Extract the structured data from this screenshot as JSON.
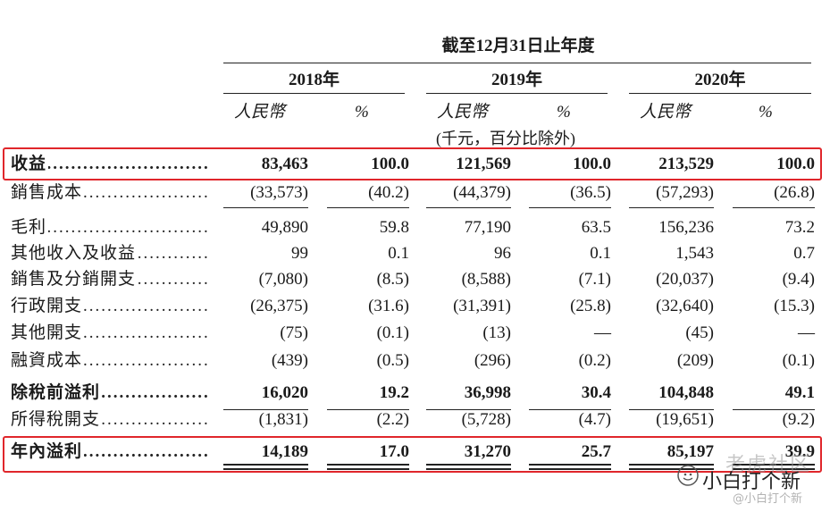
{
  "header": {
    "period": "截至12月31日止年度",
    "years": [
      "2018年",
      "2019年",
      "2020年"
    ],
    "currency": "人民幣",
    "percent": "%",
    "unit_note": "(千元，百分比除外)"
  },
  "rows": [
    {
      "label": "收益",
      "bold": true,
      "values": [
        "83,463",
        "100.0",
        "121,569",
        "100.0",
        "213,529",
        "100.0"
      ]
    },
    {
      "label": "銷售成本",
      "bold": false,
      "values": [
        "(33,573)",
        "(40.2)",
        "(44,379)",
        "(36.5)",
        "(57,293)",
        "(26.8)"
      ]
    },
    {
      "label": "毛利",
      "bold": false,
      "values": [
        "49,890",
        "59.8",
        "77,190",
        "63.5",
        "156,236",
        "73.2"
      ]
    },
    {
      "label": "其他收入及收益",
      "bold": false,
      "values": [
        "99",
        "0.1",
        "96",
        "0.1",
        "1,543",
        "0.7"
      ]
    },
    {
      "label": "銷售及分銷開支",
      "bold": false,
      "values": [
        "(7,080)",
        "(8.5)",
        "(8,588)",
        "(7.1)",
        "(20,037)",
        "(9.4)"
      ]
    },
    {
      "label": "行政開支",
      "bold": false,
      "values": [
        "(26,375)",
        "(31.6)",
        "(31,391)",
        "(25.8)",
        "(32,640)",
        "(15.3)"
      ]
    },
    {
      "label": "其他開支",
      "bold": false,
      "values": [
        "(75)",
        "(0.1)",
        "(13)",
        "—",
        "(45)",
        "—"
      ]
    },
    {
      "label": "融資成本",
      "bold": false,
      "values": [
        "(439)",
        "(0.5)",
        "(296)",
        "(0.2)",
        "(209)",
        "(0.1)"
      ]
    },
    {
      "label": "除稅前溢利",
      "bold": true,
      "values": [
        "16,020",
        "19.2",
        "36,998",
        "30.4",
        "104,848",
        "49.1"
      ]
    },
    {
      "label": "所得稅開支",
      "bold": false,
      "values": [
        "(1,831)",
        "(2.2)",
        "(5,728)",
        "(4.7)",
        "(19,651)",
        "(9.2)"
      ]
    },
    {
      "label": "年內溢利",
      "bold": true,
      "values": [
        "14,189",
        "17.0",
        "31,270",
        "25.7",
        "85,197",
        "39.9"
      ]
    }
  ],
  "watermark": {
    "big_text": "老虎社区",
    "dark_text": "小白打个新",
    "small_text": "@小白打个新"
  },
  "colors": {
    "highlight_box": "#e0262b",
    "text": "#1a1a1a",
    "watermark": "#9a9a9a"
  }
}
